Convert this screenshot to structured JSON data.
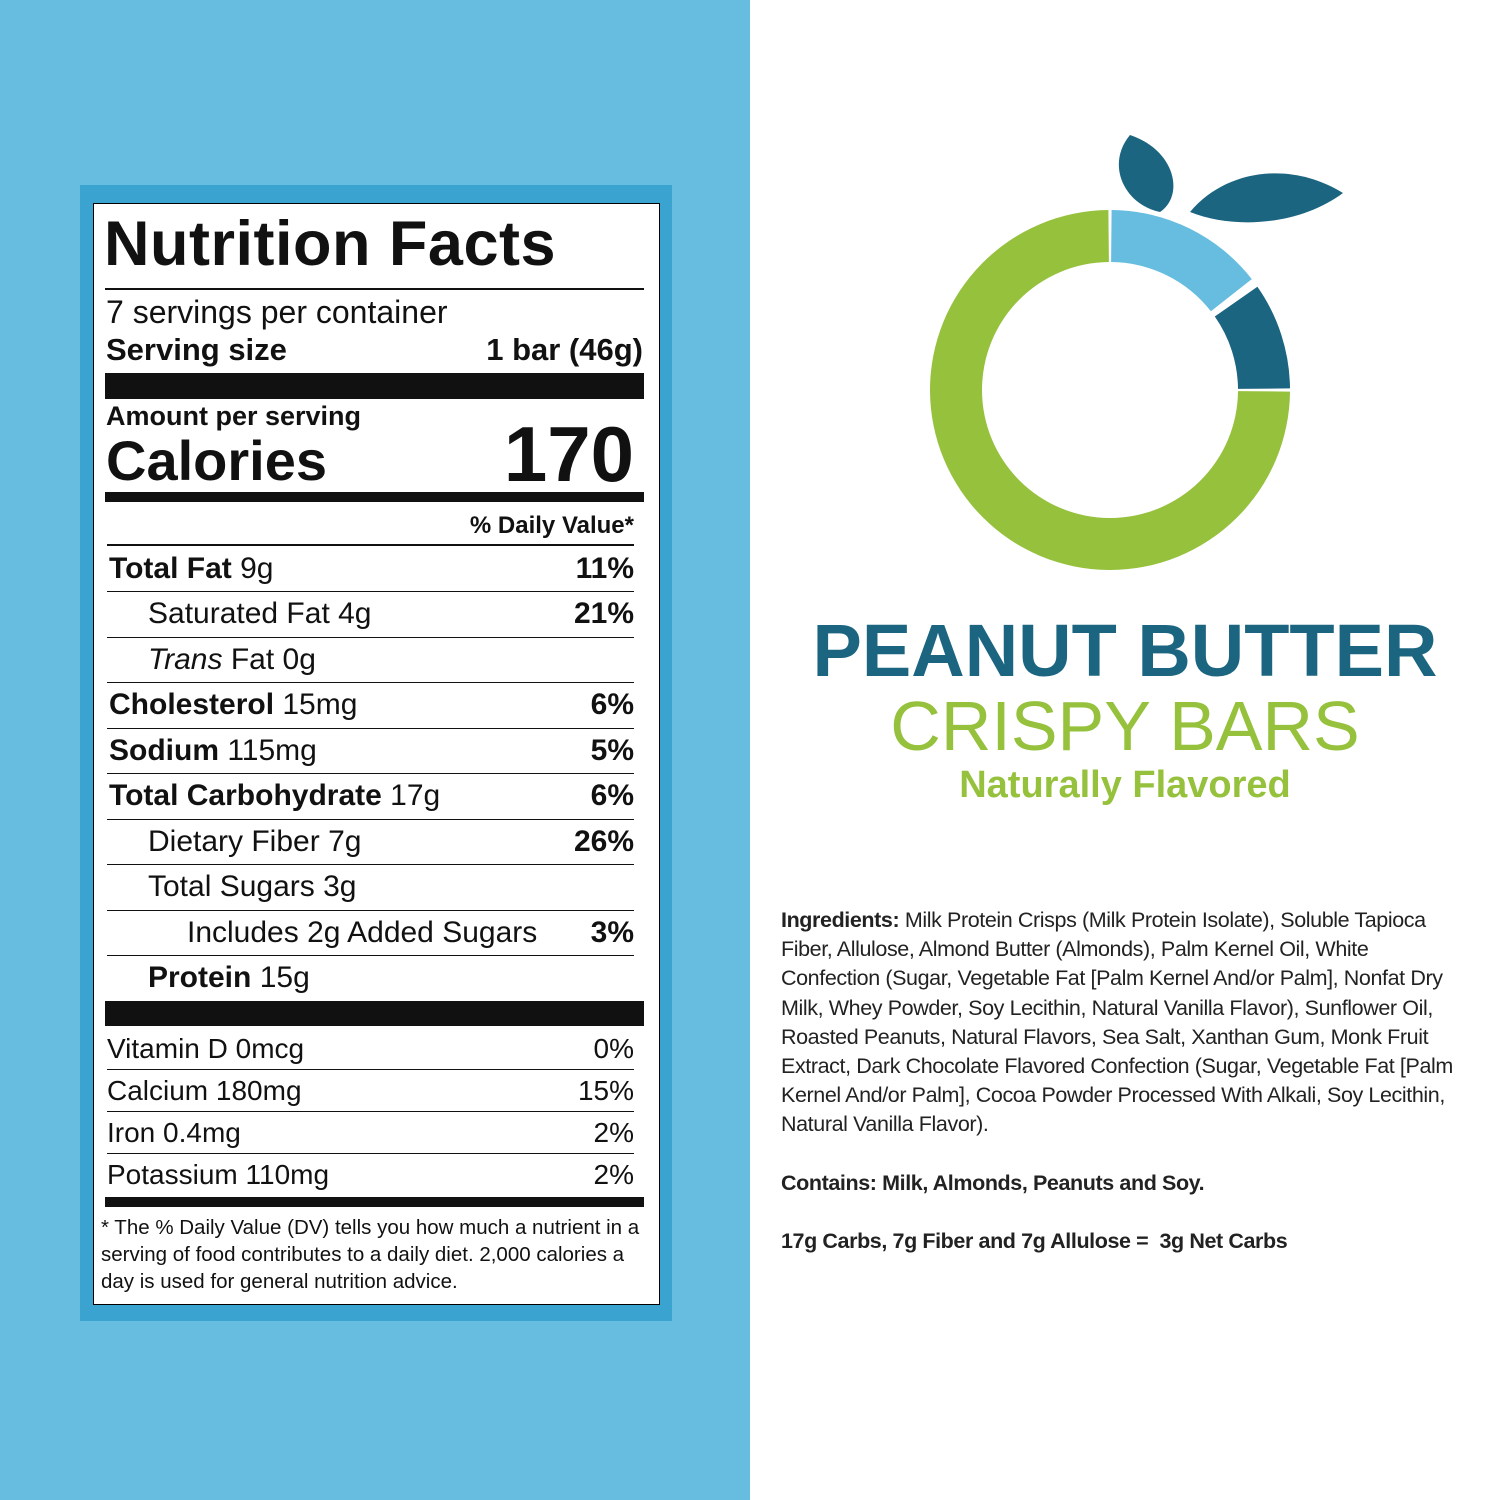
{
  "nutrition": {
    "title": "Nutrition Facts",
    "servings": "7 servings per container",
    "serving_size_label": "Serving size",
    "serving_size": "1 bar (46g)",
    "amount_per_serving": "Amount per serving",
    "calories_label": "Calories",
    "calories": 170,
    "daily_value_header": "% Daily Value*",
    "rows": [
      {
        "name": "Total Fat",
        "amount": "9g",
        "dv": "11%"
      },
      {
        "name": "Saturated Fat",
        "amount": "4g",
        "dv": "21%"
      },
      {
        "name_italic": "Trans",
        "name": "Fat",
        "amount": "0g"
      },
      {
        "name": "Cholesterol",
        "amount": "15mg",
        "dv": "6%"
      },
      {
        "name": "Sodium",
        "amount": "115mg",
        "dv": "5%"
      },
      {
        "name": "Total Carbohydrate",
        "amount": "17g",
        "dv": "6%"
      },
      {
        "name": "Dietary Fiber",
        "amount": "7g",
        "dv": "26%"
      },
      {
        "name": "Total Sugars",
        "amount": "3g"
      },
      {
        "name": "Includes 2g Added Sugars",
        "dv": "3%"
      },
      {
        "name": "Protein",
        "amount": "15g"
      }
    ],
    "vitamins": [
      {
        "name": "Vitamin D 0mcg",
        "dv": "0%"
      },
      {
        "name": "Calcium 180mg",
        "dv": "15%"
      },
      {
        "name": "Iron 0.4mg",
        "dv": "2%"
      },
      {
        "name": "Potassium 110mg",
        "dv": "2%"
      }
    ],
    "footnote": "* The % Daily Value (DV) tells you how much a nutrient in a serving of food contributes to a daily diet. 2,000 calories a day is used for general nutrition advice."
  },
  "brand": {
    "title": "PEANUT BUTTER",
    "subtitle": "CRISPY BARS",
    "flavor": "Naturally Flavored"
  },
  "ingredients": {
    "label": "Ingredients:",
    "text": "Milk Protein Crisps (Milk Protein Isolate), Soluble Tapioca Fiber, Allulose, Almond Butter (Almonds), Palm Kernel Oil, White Confection (Sugar, Vegetable Fat [Palm Kernel And/or Palm], Nonfat Dry Milk, Whey Powder, Soy Lecithin, Natural Vanilla Flavor), Sunflower Oil, Roasted Peanuts, Natural Flavors, Sea Salt, Xanthan Gum, Monk Fruit Extract, Dark Chocolate Flavored Confection (Sugar, Vegetable Fat [Palm Kernel And/or Palm], Cocoa Powder Processed With Alkali, Soy Lecithin, Natural Vanilla Flavor).",
    "contains": "Contains: Milk, Almonds, Peanuts and Soy.",
    "net_carbs": "17g Carbs, 7g Fiber and 7g Allulose =  3g Net Carbs"
  }
}
